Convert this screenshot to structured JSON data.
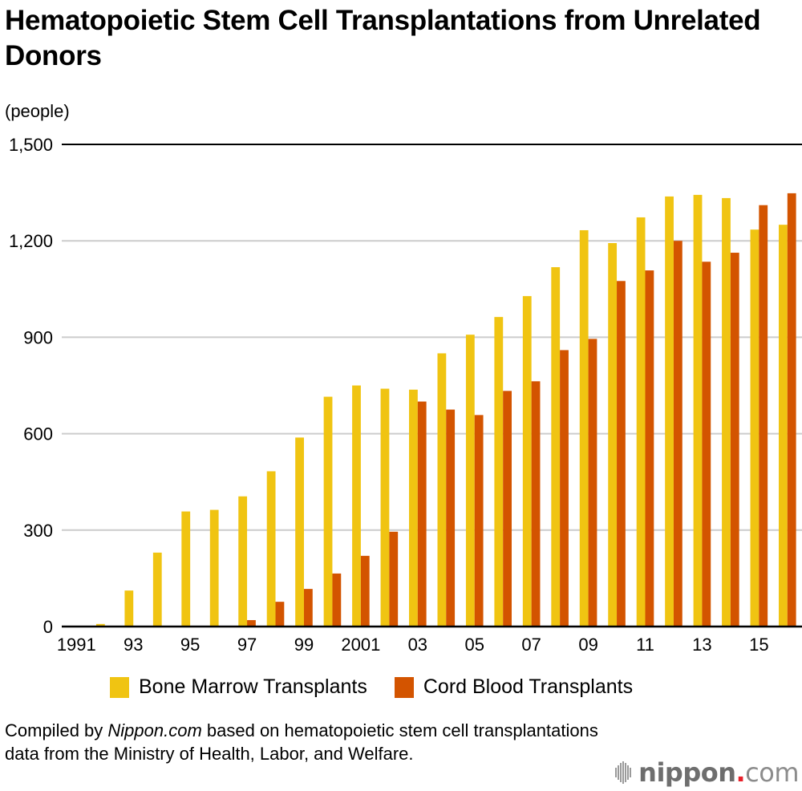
{
  "header": {
    "title": "Hematopoietic Stem Cell Transplantations from Unrelated Donors",
    "unit_label": "(people)"
  },
  "chart_data": {
    "type": "bar",
    "title": "Hematopoietic Stem Cell Transplantations from Unrelated Donors",
    "xlabel": "",
    "ylabel": "(people)",
    "ylim": [
      0,
      1500
    ],
    "yticks": [
      0,
      300,
      600,
      900,
      1200,
      1500
    ],
    "ytick_labels": [
      "0",
      "300",
      "600",
      "900",
      "1,200",
      "1,500"
    ],
    "grid": true,
    "legend_position": "bottom",
    "categories": [
      "1991",
      "1992",
      "1993",
      "1994",
      "1995",
      "1996",
      "1997",
      "1998",
      "1999",
      "2000",
      "2001",
      "2002",
      "2003",
      "2004",
      "2005",
      "2006",
      "2007",
      "2008",
      "2009",
      "2010",
      "2011",
      "2012",
      "2013",
      "2014",
      "2015",
      "2016"
    ],
    "xtick_labels": [
      {
        "index": 0,
        "label": "1991"
      },
      {
        "index": 2,
        "label": "93"
      },
      {
        "index": 4,
        "label": "95"
      },
      {
        "index": 6,
        "label": "97"
      },
      {
        "index": 8,
        "label": "99"
      },
      {
        "index": 10,
        "label": "2001"
      },
      {
        "index": 12,
        "label": "03"
      },
      {
        "index": 14,
        "label": "05"
      },
      {
        "index": 16,
        "label": "07"
      },
      {
        "index": 18,
        "label": "09"
      },
      {
        "index": 20,
        "label": "11"
      },
      {
        "index": 22,
        "label": "13"
      },
      {
        "index": 24,
        "label": "15"
      }
    ],
    "series": [
      {
        "name": "Bone Marrow Transplants",
        "color": "#F0C412",
        "values": [
          0,
          8,
          112,
          230,
          358,
          363,
          405,
          483,
          588,
          715,
          750,
          740,
          737,
          850,
          908,
          963,
          1028,
          1118,
          1233,
          1193,
          1273,
          1338,
          1343,
          1333,
          1235,
          1250
        ]
      },
      {
        "name": "Cord Blood Transplants",
        "color": "#D35400",
        "values": [
          0,
          0,
          0,
          0,
          0,
          0,
          20,
          77,
          117,
          165,
          220,
          295,
          700,
          675,
          658,
          733,
          763,
          860,
          895,
          1075,
          1108,
          1200,
          1135,
          1163,
          1311,
          1348
        ]
      }
    ]
  },
  "legend": {
    "items": [
      {
        "label": "Bone Marrow Transplants",
        "color": "#F0C412"
      },
      {
        "label": "Cord Blood Transplants",
        "color": "#D35400"
      }
    ]
  },
  "footer": {
    "note_prefix": "Compiled by ",
    "note_source": "Nippon.com",
    "note_suffix": " based on hematopoietic stem cell transplantations data from the Ministry of Health, Labor, and Welfare.",
    "logo_main": "nippon",
    "logo_dot": ".",
    "logo_tld": "com"
  }
}
